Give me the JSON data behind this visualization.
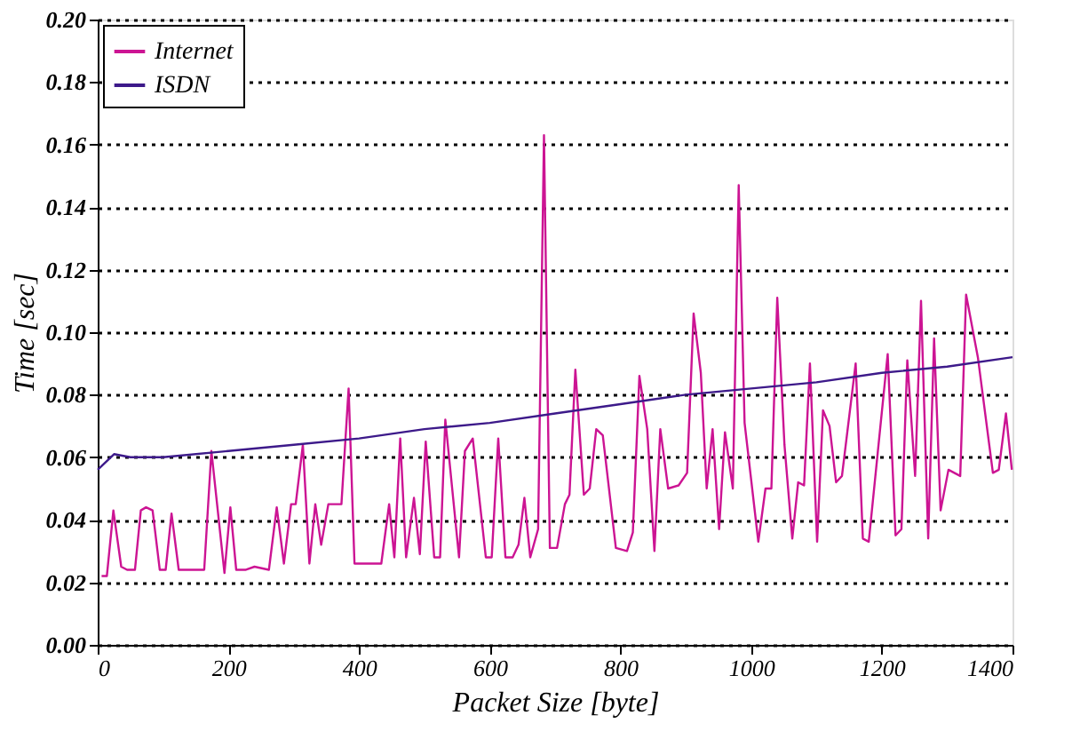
{
  "chart_data": {
    "type": "line",
    "xlabel": "Packet Size [byte]",
    "ylabel": "Time [sec]",
    "xlim": [
      0,
      1400
    ],
    "xticks": [
      0,
      200,
      400,
      600,
      800,
      1000,
      1200,
      1400
    ],
    "ylim": [
      0,
      0.2
    ],
    "yticks": [
      {
        "value": 0,
        "label": "0.00"
      },
      {
        "value": 0.02,
        "label": "0.02"
      },
      {
        "value": 0.04,
        "label": "0.04"
      },
      {
        "value": 0.06,
        "label": "0.06"
      },
      {
        "value": 0.08,
        "label": "0.08"
      },
      {
        "value": 0.1,
        "label": "0.10"
      },
      {
        "value": 0.12,
        "label": "0.12"
      },
      {
        "value": 0.14,
        "label": "0.14"
      },
      {
        "value": 0.16,
        "label": "0.16"
      },
      {
        "value": 0.18,
        "label": "0.18"
      },
      {
        "value": 0.2,
        "label": "0.20"
      }
    ],
    "grid": "y",
    "legend": "top left",
    "marker": "none",
    "line_style": "solid",
    "series": [
      {
        "name": "Internet",
        "color": "#cc1493",
        "x": [
          6,
          14,
          24,
          36,
          45,
          57,
          66,
          74,
          84,
          95,
          104,
          113,
          124,
          145,
          163,
          174,
          194,
          203,
          212,
          226,
          240,
          262,
          274,
          285,
          296,
          303,
          314,
          324,
          333,
          342,
          353,
          373,
          384,
          393,
          416,
          425,
          434,
          446,
          454,
          463,
          472,
          484,
          493,
          502,
          515,
          524,
          532,
          553,
          562,
          574,
          594,
          603,
          613,
          624,
          635,
          644,
          653,
          662,
          674,
          683,
          692,
          703,
          715,
          722,
          731,
          744,
          753,
          763,
          773,
          793,
          810,
          819,
          829,
          841,
          852,
          861,
          873,
          889,
          902,
          912,
          923,
          932,
          941,
          951,
          960,
          972,
          981,
          990,
          1011,
          1022,
          1031,
          1040,
          1051,
          1063,
          1072,
          1081,
          1090,
          1101,
          1110,
          1120,
          1130,
          1139,
          1160,
          1171,
          1180,
          1209,
          1221,
          1230,
          1239,
          1251,
          1260,
          1271,
          1280,
          1290,
          1302,
          1320,
          1329,
          1347,
          1370,
          1379,
          1390,
          1399
        ],
        "values": [
          0.022,
          0.022,
          0.043,
          0.025,
          0.024,
          0.024,
          0.043,
          0.044,
          0.043,
          0.024,
          0.024,
          0.042,
          0.024,
          0.024,
          0.024,
          0.062,
          0.023,
          0.044,
          0.024,
          0.024,
          0.025,
          0.024,
          0.044,
          0.026,
          0.045,
          0.045,
          0.064,
          0.026,
          0.045,
          0.032,
          0.045,
          0.045,
          0.082,
          0.026,
          0.026,
          0.026,
          0.026,
          0.045,
          0.028,
          0.066,
          0.028,
          0.047,
          0.029,
          0.065,
          0.028,
          0.028,
          0.072,
          0.028,
          0.062,
          0.066,
          0.028,
          0.028,
          0.066,
          0.028,
          0.028,
          0.032,
          0.047,
          0.028,
          0.037,
          0.163,
          0.031,
          0.031,
          0.045,
          0.048,
          0.088,
          0.048,
          0.05,
          0.069,
          0.067,
          0.031,
          0.03,
          0.036,
          0.086,
          0.069,
          0.03,
          0.069,
          0.05,
          0.051,
          0.055,
          0.106,
          0.087,
          0.05,
          0.069,
          0.037,
          0.068,
          0.05,
          0.147,
          0.071,
          0.033,
          0.05,
          0.05,
          0.111,
          0.064,
          0.034,
          0.052,
          0.051,
          0.09,
          0.033,
          0.075,
          0.07,
          0.052,
          0.054,
          0.09,
          0.034,
          0.033,
          0.093,
          0.035,
          0.037,
          0.091,
          0.054,
          0.11,
          0.034,
          0.098,
          0.043,
          0.056,
          0.054,
          0.112,
          0.092,
          0.055,
          0.056,
          0.074,
          0.056
        ]
      },
      {
        "name": "ISDN",
        "color": "#3d1a8a",
        "x": [
          0,
          25,
          50,
          100,
          200,
          300,
          400,
          500,
          600,
          700,
          800,
          900,
          1000,
          1100,
          1200,
          1300,
          1400
        ],
        "values": [
          0.056,
          0.061,
          0.06,
          0.06,
          0.062,
          0.064,
          0.066,
          0.069,
          0.071,
          0.074,
          0.077,
          0.08,
          0.082,
          0.084,
          0.087,
          0.089,
          0.092
        ]
      }
    ]
  }
}
